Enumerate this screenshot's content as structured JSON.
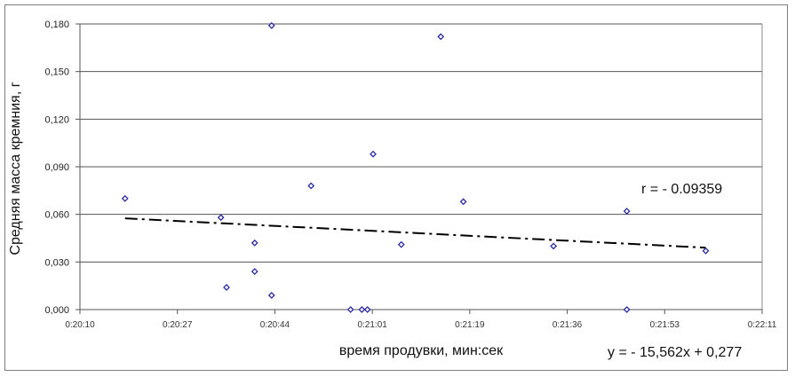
{
  "chart_data": {
    "type": "scatter",
    "title": "",
    "xlabel": "время продувки, мин:сек",
    "ylabel": "Средняя масса кремния, г",
    "xlim": [
      "0:20:10",
      "0:22:11"
    ],
    "ylim": [
      0,
      0.18
    ],
    "x_ticks": [
      "0:20:10",
      "0:20:27",
      "0:20:44",
      "0:21:01",
      "0:21:19",
      "0:21:36",
      "0:21:53",
      "0:22:11"
    ],
    "y_ticks": [
      "0,000",
      "0,030",
      "0,060",
      "0,090",
      "0,120",
      "0,150",
      "0,180"
    ],
    "y_tick_values": [
      0,
      0.03,
      0.06,
      0.09,
      0.12,
      0.15,
      0.18
    ],
    "grid": "horizontal",
    "marker_color": "#2a2aa0",
    "points": [
      {
        "x": "0:20:18",
        "y": 0.07
      },
      {
        "x": "0:20:35",
        "y": 0.058
      },
      {
        "x": "0:20:36",
        "y": 0.014
      },
      {
        "x": "0:20:41",
        "y": 0.042
      },
      {
        "x": "0:20:41",
        "y": 0.024
      },
      {
        "x": "0:20:44",
        "y": 0.009
      },
      {
        "x": "0:20:44",
        "y": 0.179
      },
      {
        "x": "0:20:51",
        "y": 0.078
      },
      {
        "x": "0:20:58",
        "y": 0.0
      },
      {
        "x": "0:21:00",
        "y": 0.0
      },
      {
        "x": "0:21:01",
        "y": 0.0
      },
      {
        "x": "0:21:02",
        "y": 0.098
      },
      {
        "x": "0:21:07",
        "y": 0.041
      },
      {
        "x": "0:21:14",
        "y": 0.172
      },
      {
        "x": "0:21:18",
        "y": 0.068
      },
      {
        "x": "0:21:34",
        "y": 0.04
      },
      {
        "x": "0:21:47",
        "y": 0.062
      },
      {
        "x": "0:21:47",
        "y": 0.0
      },
      {
        "x": "0:22:01",
        "y": 0.037
      }
    ],
    "trendline": {
      "style": "dash-dot",
      "color": "#000000",
      "from": {
        "x": "0:20:18",
        "y": 0.0575
      },
      "to": {
        "x": "0:22:01",
        "y": 0.039
      }
    },
    "annotations": {
      "r": "r = - 0.09359",
      "equation": "y = - 15,562x + 0,277"
    }
  }
}
